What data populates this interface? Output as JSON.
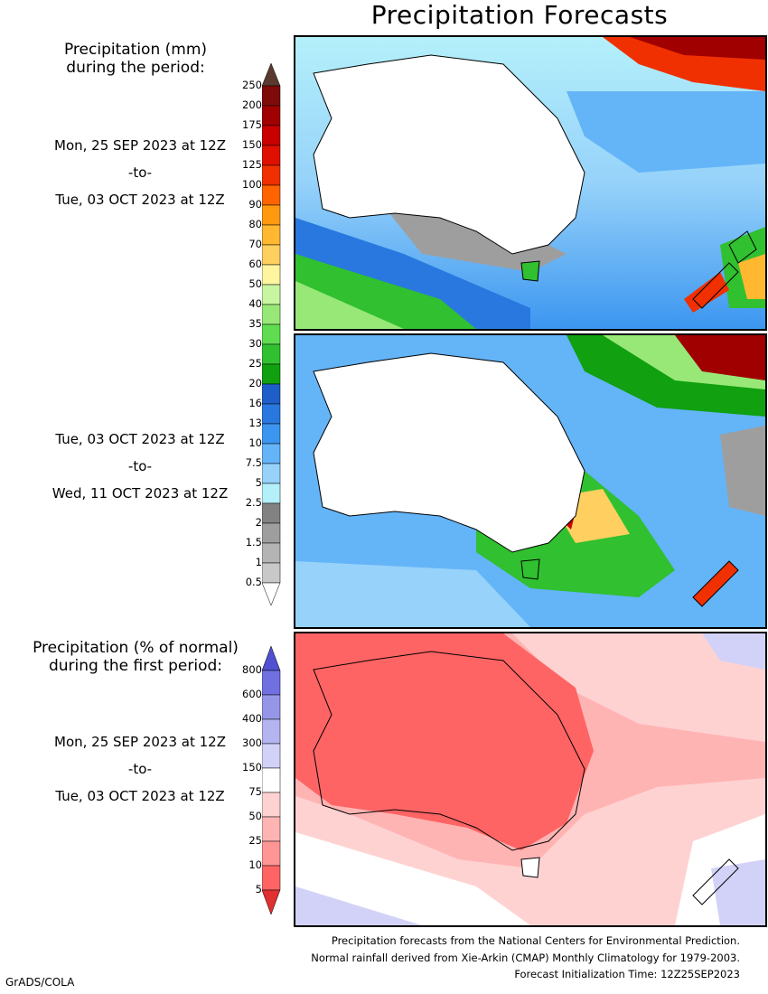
{
  "title": "Precipitation Forecasts",
  "sidebar": {
    "top_heading": [
      "Precipitation (mm)",
      "during the period:"
    ],
    "period1": [
      "Mon, 25 SEP 2023 at 12Z",
      "-to-",
      "Tue, 03 OCT 2023 at 12Z"
    ],
    "period2": [
      "Tue, 03 OCT 2023 at 12Z",
      "-to-",
      "Wed, 11 OCT 2023 at 12Z"
    ],
    "bottom_heading": [
      "Precipitation (% of normal)",
      "during the first period:"
    ],
    "period3": [
      "Mon, 25 SEP 2023 at 12Z",
      "-to-",
      "Tue, 03 OCT 2023 at 12Z"
    ]
  },
  "mm_scale": {
    "labels": [
      "250",
      "200",
      "175",
      "150",
      "125",
      "100",
      "90",
      "80",
      "70",
      "60",
      "50",
      "40",
      "35",
      "30",
      "25",
      "20",
      "16",
      "13",
      "10",
      "7.5",
      "5",
      "2.5",
      "2",
      "1.5",
      "1",
      "0.5"
    ],
    "colors": [
      "#5a3a2e",
      "#7e0a0a",
      "#a00000",
      "#c80000",
      "#e01000",
      "#f03000",
      "#ff6400",
      "#ff9a10",
      "#ffb830",
      "#ffd060",
      "#fff5a0",
      "#c8f5a0",
      "#98e878",
      "#60dc50",
      "#30c030",
      "#10a010",
      "#1e5ec8",
      "#2878e0",
      "#3c96f0",
      "#64b4f8",
      "#96d2fa",
      "#b4f0fa",
      "#828282",
      "#9e9e9e",
      "#b4b4b4",
      "#c8c8c8",
      "#ffffff"
    ]
  },
  "pct_scale": {
    "labels": [
      "800",
      "600",
      "400",
      "300",
      "150",
      "75",
      "50",
      "25",
      "10",
      "5"
    ],
    "colors": [
      "#5050d0",
      "#7070e0",
      "#9696e8",
      "#b4b4f0",
      "#d2d2f8",
      "#ffffff",
      "#ffd2d2",
      "#ffb4b4",
      "#ff9696",
      "#ff6464",
      "#e03030"
    ]
  },
  "footer": [
    "Precipitation forecasts from the National Centers for Environmental Prediction.",
    "Normal rainfall derived from Xie-Arkin (CMAP) Monthly Climatology for 1979-2003.",
    "Forecast Initialization Time: 12Z25SEP2023"
  ],
  "credit": "GrADS/COLA"
}
